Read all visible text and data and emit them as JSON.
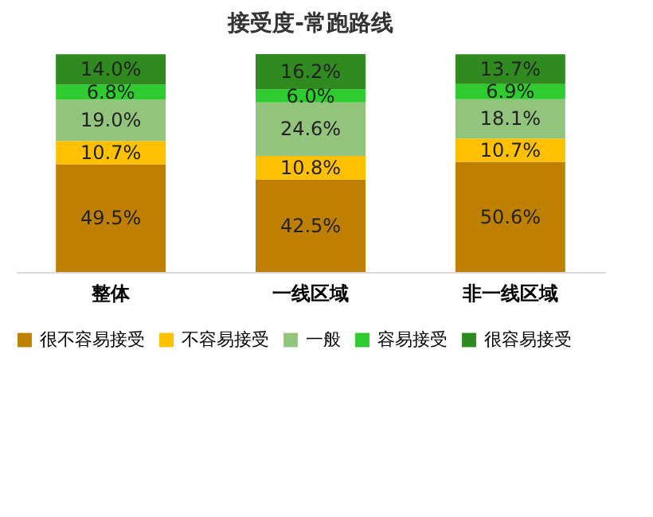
{
  "chart_data": {
    "type": "bar",
    "title": "接受度-常跑路线",
    "categories": [
      "整体",
      "一线区域",
      "非一线区域"
    ],
    "stacked": true,
    "legend": "bottom",
    "series": [
      {
        "name": "很不容易接受",
        "color": "#bf7f00",
        "values": [
          49.5,
          42.5,
          50.6
        ],
        "value_labels": [
          "49.5%",
          "42.5%",
          "50.6%"
        ]
      },
      {
        "name": "不容易接受",
        "color": "#ffc000",
        "values": [
          10.7,
          10.8,
          10.7
        ],
        "value_labels": [
          "10.7%",
          "10.8%",
          "10.7%"
        ]
      },
      {
        "name": "一般",
        "color": "#93c47d",
        "values": [
          19.0,
          24.6,
          18.1
        ],
        "value_labels": [
          "19.0%",
          "24.6%",
          "18.1%"
        ]
      },
      {
        "name": "容易接受",
        "color": "#2ecc2e",
        "values": [
          6.8,
          6.0,
          6.9
        ],
        "value_labels": [
          "6.8%",
          "6.0%",
          "6.9%"
        ]
      },
      {
        "name": "很容易接受",
        "color": "#2f8a1f",
        "values": [
          14.0,
          16.2,
          13.7
        ],
        "value_labels": [
          "14.0%",
          "16.2%",
          "13.7%"
        ]
      }
    ]
  }
}
